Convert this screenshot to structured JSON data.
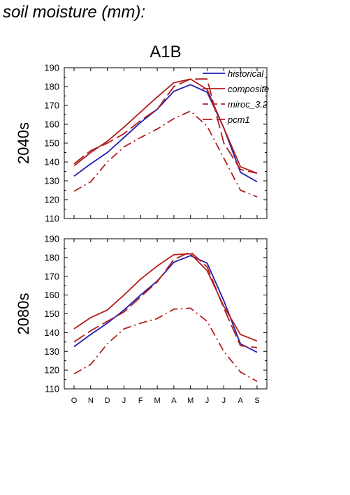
{
  "page": {
    "title": "soil moisture (mm):"
  },
  "chart_data": {
    "type": "line",
    "title": "A1B",
    "months": [
      "O",
      "N",
      "D",
      "J",
      "F",
      "M",
      "A",
      "M",
      "J",
      "J",
      "A",
      "S"
    ],
    "ylim": [
      110,
      190
    ],
    "yticks": [
      110,
      120,
      130,
      140,
      150,
      160,
      170,
      180,
      190
    ],
    "legend_position": "top-right",
    "styles": {
      "historical": {
        "color": "#1e1eb4",
        "dash": ""
      },
      "composite": {
        "color": "#b41e1e",
        "dash": ""
      },
      "miroc_3.2": {
        "color": "#b41e1e",
        "dash": "18,6"
      },
      "pcm1": {
        "color": "#b41e1e",
        "dash": "12,5,2,5"
      }
    },
    "legend": [
      {
        "name": "historical",
        "dash": ""
      },
      {
        "name": "composite",
        "dash": ""
      },
      {
        "name": "miroc_3.2",
        "dash": "8,5"
      },
      {
        "name": "pcm1",
        "dash": "14,6"
      }
    ],
    "panels": [
      {
        "label": "2040s",
        "series": [
          {
            "name": "historical",
            "values": [
              132.5,
              139,
              145,
              153,
              161,
              168,
              177.5,
              181,
              177,
              158,
              134.5,
              129.5
            ]
          },
          {
            "name": "composite",
            "values": [
              138,
              145,
              151,
              158.5,
              166.5,
              174.5,
              182,
              184,
              178.5,
              158,
              137.5,
              134
            ]
          },
          {
            "name": "miroc_3.2",
            "values": [
              139,
              146,
              150,
              155,
              162,
              168,
              180,
              184,
              184,
              150,
              136,
              134
            ]
          },
          {
            "name": "pcm1",
            "values": [
              124.5,
              129.5,
              140,
              148,
              153,
              157.5,
              163,
              167,
              159,
              142,
              125,
              121.5
            ]
          }
        ]
      },
      {
        "label": "2080s",
        "series": [
          {
            "name": "historical",
            "values": [
              132.5,
              139,
              145,
              152,
              160,
              167.5,
              177.5,
              181,
              177,
              157,
              134,
              129.5
            ]
          },
          {
            "name": "composite",
            "values": [
              142,
              148,
              152,
              160,
              168.5,
              175.5,
              181.5,
              182,
              173,
              154,
              139,
              135.5
            ]
          },
          {
            "name": "miroc_3.2",
            "values": [
              135,
              141,
              146,
              151,
              159,
              167,
              179,
              183,
              175,
              153,
              133,
              132
            ]
          },
          {
            "name": "pcm1",
            "values": [
              118,
              123,
              134,
              142,
              145,
              147.5,
              152.5,
              153,
              146,
              130,
              119,
              114
            ]
          }
        ]
      }
    ]
  }
}
